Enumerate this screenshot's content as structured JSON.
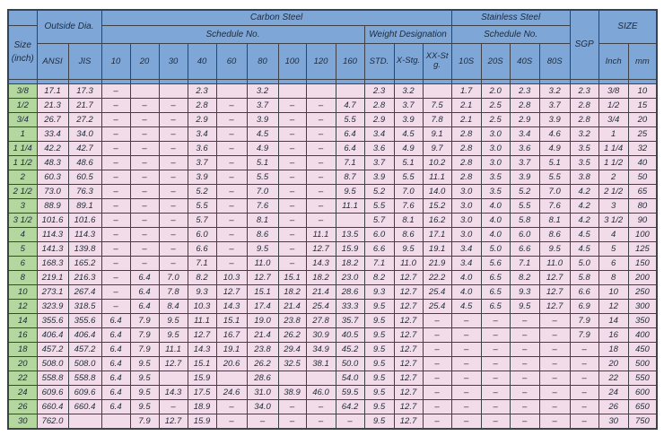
{
  "colors": {
    "header_blue": "#7EA7D8",
    "size_green": "#B3D79E",
    "data_pink": "#F2DCE9",
    "border": "#3D4148",
    "text": "#1E2A3A"
  },
  "table": {
    "header": {
      "size": "Size",
      "size_unit": "(inch)",
      "outside_dia": "Outside Dia.",
      "carbon_steel": "Carbon Steel",
      "stainless_steel": "Stainless Steel",
      "sgp": "SGP",
      "size_group": "SIZE",
      "schedule_no_carbon": "Schedule No.",
      "weight_designation": "Weight Designation",
      "schedule_no_stainless": "Schedule No.",
      "ansi": "ANSI",
      "jis": "JIS",
      "carbon_schedules": [
        "10",
        "20",
        "30",
        "40",
        "60",
        "80",
        "100",
        "120",
        "160"
      ],
      "weight_columns": [
        "STD.",
        "X-Stg.",
        "XX-Stg."
      ],
      "stainless_schedules": [
        "10S",
        "20S",
        "40S",
        "80S"
      ],
      "size_columns": [
        "Inch",
        "mm"
      ]
    },
    "rows": [
      [
        "3/8",
        "17.1",
        "17.3",
        "–",
        "",
        "",
        "2.3",
        "",
        "3.2",
        "",
        "",
        "",
        "2.3",
        "3.2",
        "",
        "1.7",
        "2.0",
        "2.3",
        "3.2",
        "2.3",
        "3/8",
        "10"
      ],
      [
        "1/2",
        "21.3",
        "21.7",
        "–",
        "–",
        "–",
        "2.8",
        "–",
        "3.7",
        "–",
        "–",
        "4.7",
        "2.8",
        "3.7",
        "7.5",
        "2.1",
        "2.5",
        "2.8",
        "3.7",
        "2.8",
        "1/2",
        "15"
      ],
      [
        "3/4",
        "26.7",
        "27.2",
        "–",
        "–",
        "–",
        "2.9",
        "–",
        "3.9",
        "–",
        "–",
        "5.5",
        "2.9",
        "3.9",
        "7.8",
        "2.1",
        "2.5",
        "2.9",
        "3.9",
        "2.8",
        "3/4",
        "20"
      ],
      [
        "1",
        "33.4",
        "34.0",
        "–",
        "–",
        "–",
        "3.4",
        "–",
        "4.5",
        "–",
        "–",
        "6.4",
        "3.4",
        "4.5",
        "9.1",
        "2.8",
        "3.0",
        "3.4",
        "4.6",
        "3.2",
        "1",
        "25"
      ],
      [
        "1 1/4",
        "42.2",
        "42.7",
        "–",
        "–",
        "–",
        "3.6",
        "–",
        "4.9",
        "–",
        "–",
        "6.4",
        "3.6",
        "4.9",
        "9.7",
        "2.8",
        "3.0",
        "3.6",
        "4.9",
        "3.5",
        "1 1/4",
        "32"
      ],
      [
        "1 1/2",
        "48.3",
        "48.6",
        "–",
        "–",
        "–",
        "3.7",
        "–",
        "5.1",
        "–",
        "–",
        "7.1",
        "3.7",
        "5.1",
        "10.2",
        "2.8",
        "3.0",
        "3.7",
        "5.1",
        "3.5",
        "1 1/2",
        "40"
      ],
      [
        "2",
        "60.3",
        "60.5",
        "–",
        "–",
        "–",
        "3.9",
        "–",
        "5.5",
        "–",
        "–",
        "8.7",
        "3.9",
        "5.5",
        "11.1",
        "2.8",
        "3.5",
        "3.9",
        "5.5",
        "3.8",
        "2",
        "50"
      ],
      [
        "2 1/2",
        "73.0",
        "76.3",
        "–",
        "–",
        "–",
        "5.2",
        "–",
        "7.0",
        "–",
        "–",
        "9.5",
        "5.2",
        "7.0",
        "14.0",
        "3.0",
        "3.5",
        "5.2",
        "7.0",
        "4.2",
        "2 1/2",
        "65"
      ],
      [
        "3",
        "88.9",
        "89.1",
        "–",
        "–",
        "–",
        "5.5",
        "–",
        "7.6",
        "–",
        "–",
        "11.1",
        "5.5",
        "7.6",
        "15.2",
        "3.0",
        "4.0",
        "5.5",
        "7.6",
        "4.2",
        "3",
        "80"
      ],
      [
        "3 1/2",
        "101.6",
        "101.6",
        "–",
        "–",
        "–",
        "5.7",
        "–",
        "8.1",
        "–",
        "–",
        "",
        "5.7",
        "8.1",
        "16.2",
        "3.0",
        "4.0",
        "5.8",
        "8.1",
        "4.2",
        "3 1/2",
        "90"
      ],
      [
        "4",
        "114.3",
        "114.3",
        "–",
        "–",
        "–",
        "6.0",
        "–",
        "8.6",
        "–",
        "11.1",
        "13.5",
        "6.0",
        "8.6",
        "17.1",
        "3.0",
        "4.0",
        "6.0",
        "8.6",
        "4.5",
        "4",
        "100"
      ],
      [
        "5",
        "141.3",
        "139.8",
        "–",
        "–",
        "–",
        "6.6",
        "–",
        "9.5",
        "–",
        "12.7",
        "15.9",
        "6.6",
        "9.5",
        "19.1",
        "3.4",
        "5.0",
        "6.6",
        "9.5",
        "4.5",
        "5",
        "125"
      ],
      [
        "6",
        "168.3",
        "165.2",
        "–",
        "–",
        "–",
        "7.1",
        "–",
        "11.0",
        "–",
        "14.3",
        "18.2",
        "7.1",
        "11.0",
        "21.9",
        "3.4",
        "5.6",
        "7.1",
        "11.0",
        "5.0",
        "6",
        "150"
      ],
      [
        "8",
        "219.1",
        "216.3",
        "–",
        "6.4",
        "7.0",
        "8.2",
        "10.3",
        "12.7",
        "15.1",
        "18.2",
        "23.0",
        "8.2",
        "12.7",
        "22.2",
        "4.0",
        "6.5",
        "8.2",
        "12.7",
        "5.8",
        "8",
        "200"
      ],
      [
        "10",
        "273.1",
        "267.4",
        "–",
        "6.4",
        "7.8",
        "9.3",
        "12.7",
        "15.1",
        "18.2",
        "21.4",
        "28.6",
        "9.3",
        "12.7",
        "25.4",
        "4.0",
        "6.5",
        "9.3",
        "12.7",
        "6.6",
        "10",
        "250"
      ],
      [
        "12",
        "323.9",
        "318.5",
        "–",
        "6.4",
        "8.4",
        "10.3",
        "14.3",
        "17.4",
        "21.4",
        "25.4",
        "33.3",
        "9.5",
        "12.7",
        "25.4",
        "4.5",
        "6.5",
        "9.5",
        "12.7",
        "6.9",
        "12",
        "300"
      ],
      [
        "14",
        "355.6",
        "355.6",
        "6.4",
        "7.9",
        "9.5",
        "11.1",
        "15.1",
        "19.0",
        "23.8",
        "27.8",
        "35.7",
        "9.5",
        "12.7",
        "–",
        "–",
        "–",
        "–",
        "–",
        "7.9",
        "14",
        "350"
      ],
      [
        "16",
        "406.4",
        "406.4",
        "6.4",
        "7.9",
        "9.5",
        "12.7",
        "16.7",
        "21.4",
        "26.2",
        "30.9",
        "40.5",
        "9.5",
        "12.7",
        "–",
        "–",
        "–",
        "–",
        "–",
        "7.9",
        "16",
        "400"
      ],
      [
        "18",
        "457.2",
        "457.2",
        "6.4",
        "7.9",
        "11.1",
        "14.3",
        "19.1",
        "23.8",
        "29.4",
        "34.9",
        "45.2",
        "9.5",
        "12.7",
        "–",
        "–",
        "–",
        "–",
        "–",
        "–",
        "18",
        "450"
      ],
      [
        "20",
        "508.0",
        "508.0",
        "6.4",
        "9.5",
        "12.7",
        "15.1",
        "20.6",
        "26.2",
        "32.5",
        "38.1",
        "50.0",
        "9.5",
        "12.7",
        "–",
        "–",
        "–",
        "–",
        "–",
        "–",
        "20",
        "500"
      ],
      [
        "22",
        "558.8",
        "558.8",
        "6.4",
        "9.5",
        "",
        "15.9",
        "",
        "28.6",
        "",
        "",
        "54.0",
        "9.5",
        "12.7",
        "–",
        "–",
        "–",
        "–",
        "–",
        "–",
        "22",
        "550"
      ],
      [
        "24",
        "609.6",
        "609.6",
        "6.4",
        "9.5",
        "14.3",
        "17.5",
        "24.6",
        "31.0",
        "38.9",
        "46.0",
        "59.5",
        "9.5",
        "12.7",
        "–",
        "–",
        "–",
        "–",
        "–",
        "–",
        "24",
        "600"
      ],
      [
        "26",
        "660.4",
        "660.4",
        "6.4",
        "9.5",
        "–",
        "18.9",
        "–",
        "34.0",
        "–",
        "–",
        "64.2",
        "9.5",
        "12.7",
        "–",
        "–",
        "–",
        "–",
        "–",
        "–",
        "26",
        "650"
      ],
      [
        "30",
        "762.0",
        "",
        "",
        "7.9",
        "12.7",
        "15.9",
        "–",
        "–",
        "–",
        "–",
        "–",
        "9.5",
        "12.7",
        "–",
        "–",
        "–",
        "–",
        "–",
        "–",
        "30",
        "750"
      ]
    ]
  }
}
